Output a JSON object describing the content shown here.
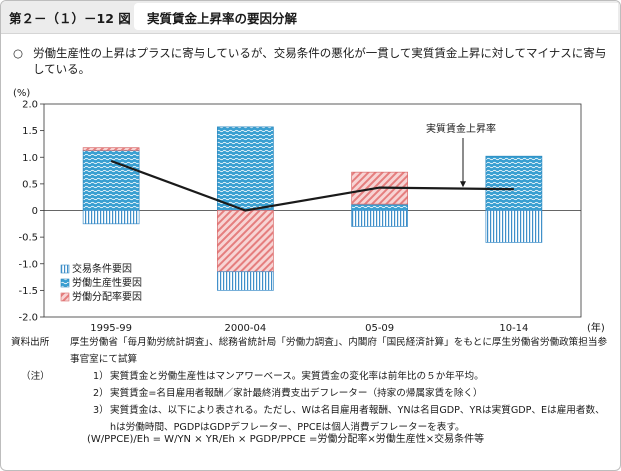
{
  "header": {
    "figure_number": "第２－（１）－12 図",
    "title": "実質賃金上昇率の要因分解"
  },
  "summary": {
    "marker": "○",
    "text": "労働生産性の上昇はプラスに寄与しているが、交易条件の悪化が一貫して実質賃金上昇に対してマイナスに寄与している。"
  },
  "chart_data": {
    "type": "bar",
    "stacked": true,
    "y_unit": "(%)",
    "x_unit": "(年)",
    "categories": [
      "1995-99",
      "2000-04",
      "05-09",
      "10-14"
    ],
    "ylim": [
      -2.0,
      2.0
    ],
    "yticks": [
      "2.0",
      "1.5",
      "1.0",
      "0.5",
      "0",
      "-0.5",
      "-1.0",
      "-1.5",
      "-2.0"
    ],
    "series": [
      {
        "name": "交易条件要因",
        "values": [
          -0.25,
          -0.35,
          -0.3,
          -0.6
        ],
        "color": "#3f8fc9",
        "pattern": "vertical-stripes"
      },
      {
        "name": "労働生産性要因",
        "values": [
          1.13,
          1.57,
          0.12,
          1.02
        ],
        "color": "#3a9fd1",
        "pattern": "wave"
      },
      {
        "name": "労働分配率要因",
        "values": [
          0.05,
          -1.15,
          0.6,
          0.0
        ],
        "color": "#e57e7e",
        "pattern": "diagonal-stripes"
      }
    ],
    "line": {
      "name": "実質賃金上昇率",
      "values": [
        0.93,
        0.0,
        0.43,
        0.4
      ],
      "color": "#1a1a1a"
    },
    "legend_position": "bottom-left",
    "annotation": "実質賃金上昇率"
  },
  "notes": {
    "source_label": "資料出所",
    "source_text": "厚生労働省「毎月勤労統計調査」、総務省統計局「労働力調査」、内閣府「国民経済計算」をもとに厚生労働省労働政策担当参事官室にて試算",
    "note_label": "（注）",
    "items": [
      {
        "num": "1）",
        "text": "実質賃金と労働生産性はマンアワーベース。実質賃金の変化率は前年比の５か年平均。"
      },
      {
        "num": "2）",
        "text": "実質賃金=名目雇用者報酬／家計最終消費支出デフレーター（持家の帰属家賃を除く）"
      },
      {
        "num": "3）",
        "text": "実質賃金は、以下により表される。ただし、Wは名目雇用者報酬、YNは名目GDP、YRは実質GDP、Eは雇用者数、"
      },
      {
        "num": "",
        "text": "hは労働時間、PGDPはGDPデフレーター、PPCEは個人消費デフレーターを表す。"
      }
    ],
    "formula_text": "(W/PPCE)/Eh = W/YN × YR/Eh × PGDP/PPCE =労働分配率×労働生産性×交易条件等"
  }
}
